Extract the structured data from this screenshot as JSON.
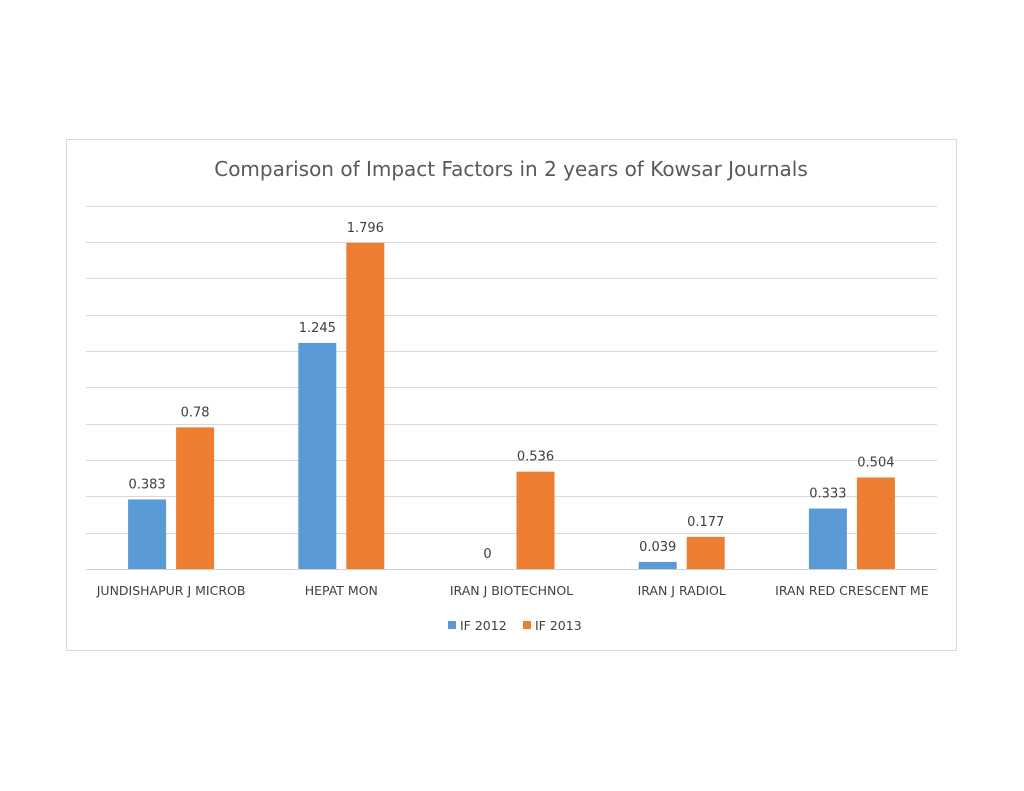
{
  "chart_data": {
    "type": "bar",
    "title": "Comparison of Impact Factors in 2 years of Kowsar Journals",
    "categories": [
      "JUNDISHAPUR J MICROB",
      "HEPAT MON",
      "IRAN J BIOTECHNOL",
      "IRAN J RADIOL",
      "IRAN RED CRESCENT ME"
    ],
    "series": [
      {
        "name": "IF 2012",
        "color": "#5B9BD5",
        "values": [
          0.383,
          1.245,
          0,
          0.039,
          0.333
        ],
        "labels": [
          "0.383",
          "1.245",
          "0",
          "0.039",
          "0.333"
        ]
      },
      {
        "name": "IF 2013",
        "color": "#ED7D31",
        "values": [
          0.78,
          1.796,
          0.536,
          0.177,
          0.504
        ],
        "labels": [
          "0.78",
          "1.796",
          "0.536",
          "0.177",
          "0.504"
        ]
      }
    ],
    "ylim": [
      0,
      2
    ],
    "grid": true,
    "legend_position": "bottom"
  }
}
